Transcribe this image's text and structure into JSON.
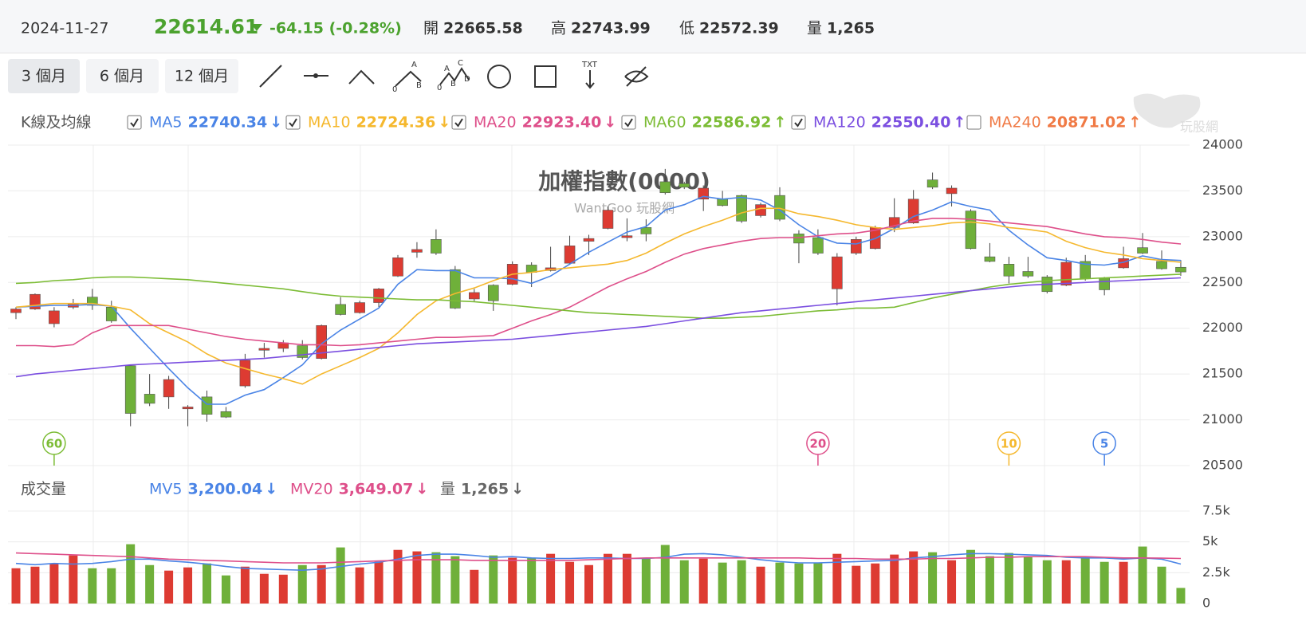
{
  "header": {
    "date": "2024-11-27",
    "price": "22614.61",
    "change": "-64.15 (-0.28%)",
    "stats": [
      {
        "label": "開",
        "value": "22665.58"
      },
      {
        "label": "高",
        "value": "22743.99"
      },
      {
        "label": "低",
        "value": "22572.39"
      },
      {
        "label": "量",
        "value": "1,265"
      }
    ]
  },
  "toolbar": {
    "ranges": [
      "3 個月",
      "6 個月",
      "12 個月"
    ],
    "tool_labels": {
      "abc": [
        "A",
        "B",
        "0"
      ],
      "abcd": [
        "A",
        "C",
        "B",
        "D",
        "0"
      ],
      "text": "TXT"
    }
  },
  "logo": "玩股網",
  "chart_data": [
    {
      "type": "candlestick",
      "title": "加權指數(0000)",
      "subtitle": "WantGoo 玩股網",
      "legend_title": "K線及均線",
      "up_color": "#dd3b32",
      "down_color": "#6fb03a",
      "grid": true,
      "open": [
        22170,
        22210,
        22050,
        22230,
        22340,
        22230,
        21590,
        21280,
        21250,
        21120,
        21250,
        21090,
        21370,
        21760,
        21780,
        21810,
        21670,
        22260,
        22170,
        22280,
        22570,
        22830,
        22970,
        22640,
        22320,
        22470,
        22480,
        22690,
        22630,
        22710,
        22950,
        23090,
        22990,
        23100,
        23600,
        23580,
        23410,
        23410,
        23450,
        23230,
        23450,
        23030,
        22990,
        22430,
        22820,
        22870,
        23100,
        23150,
        23620,
        23470,
        23280,
        22780,
        22700,
        22620,
        22560,
        22470,
        22730,
        22550,
        22660,
        22880,
        22730,
        22665.58
      ],
      "high": [
        22230,
        22380,
        22230,
        22320,
        22430,
        22300,
        21600,
        21500,
        21480,
        21160,
        21320,
        21140,
        21720,
        21840,
        21870,
        21870,
        22040,
        22340,
        22300,
        22440,
        22800,
        22940,
        23080,
        22680,
        22430,
        22480,
        22730,
        22720,
        22890,
        23010,
        23020,
        23330,
        23200,
        23190,
        23740,
        23600,
        23560,
        23500,
        23460,
        23370,
        23540,
        23070,
        23080,
        22820,
        23000,
        23120,
        23420,
        23510,
        23700,
        23560,
        23300,
        22930,
        22780,
        22780,
        22580,
        22770,
        22800,
        22560,
        22890,
        23040,
        22850,
        22743.99
      ],
      "low": [
        22100,
        22200,
        22010,
        22210,
        22200,
        22060,
        20930,
        21150,
        21120,
        20930,
        20980,
        21020,
        21350,
        21680,
        21740,
        21660,
        21660,
        22140,
        22160,
        22230,
        22560,
        22770,
        22800,
        22210,
        22290,
        22190,
        22470,
        22450,
        22620,
        22700,
        22800,
        23080,
        22950,
        22950,
        23460,
        23520,
        23280,
        23330,
        23150,
        23210,
        23170,
        22710,
        22800,
        22250,
        22800,
        22860,
        23050,
        23140,
        23520,
        23330,
        22860,
        22720,
        22490,
        22550,
        22380,
        22460,
        22520,
        22360,
        22650,
        22810,
        22640,
        22572.39
      ],
      "close": [
        22210,
        22370,
        22190,
        22270,
        22250,
        22080,
        21070,
        21180,
        21440,
        21140,
        21060,
        21030,
        21650,
        21780,
        21840,
        21680,
        22030,
        22150,
        22280,
        22430,
        22770,
        22860,
        22820,
        22220,
        22390,
        22300,
        22700,
        22610,
        22660,
        22900,
        22980,
        23290,
        23010,
        23030,
        23480,
        23540,
        23530,
        23340,
        23170,
        23350,
        23190,
        22930,
        22820,
        22780,
        22970,
        23100,
        23210,
        23410,
        23540,
        23530,
        22870,
        22730,
        22570,
        22570,
        22400,
        22720,
        22540,
        22420,
        22760,
        22820,
        22650,
        22614.61
      ],
      "ylim": [
        20500,
        24000
      ],
      "yticks": [
        20500,
        21000,
        21500,
        22000,
        22500,
        23000,
        23500,
        24000
      ],
      "series": [
        {
          "name": "MA5",
          "color": "#4a84e6",
          "latest": "22740.34",
          "trend": "↓",
          "checked": true,
          "values": [
            22230,
            22240,
            22250,
            22250,
            22260,
            22240,
            22000,
            21780,
            21560,
            21350,
            21170,
            21170,
            21270,
            21330,
            21460,
            21600,
            21830,
            21980,
            22100,
            22220,
            22480,
            22640,
            22630,
            22630,
            22550,
            22550,
            22540,
            22490,
            22570,
            22700,
            22830,
            22940,
            23050,
            23110,
            23290,
            23350,
            23440,
            23410,
            23430,
            23400,
            23290,
            23130,
            23000,
            22930,
            22920,
            22980,
            23090,
            23220,
            23290,
            23380,
            23330,
            23290,
            23070,
            22910,
            22770,
            22740,
            22700,
            22690,
            22720,
            22790,
            22750,
            22740
          ]
        },
        {
          "name": "MA10",
          "color": "#f5b82e",
          "latest": "22724.36",
          "trend": "↓",
          "checked": true,
          "values": [
            22230,
            22250,
            22270,
            22270,
            22270,
            22240,
            22200,
            22050,
            21950,
            21850,
            21720,
            21620,
            21560,
            21500,
            21450,
            21390,
            21500,
            21590,
            21680,
            21780,
            21950,
            22150,
            22300,
            22380,
            22440,
            22520,
            22590,
            22610,
            22640,
            22660,
            22680,
            22700,
            22740,
            22820,
            22930,
            23030,
            23110,
            23180,
            23260,
            23310,
            23310,
            23250,
            23220,
            23180,
            23130,
            23100,
            23080,
            23100,
            23120,
            23150,
            23160,
            23140,
            23100,
            23080,
            23050,
            22950,
            22880,
            22830,
            22800,
            22760,
            22740,
            22720
          ]
        },
        {
          "name": "MA20",
          "color": "#de4f8a",
          "latest": "22923.40",
          "trend": "↓",
          "checked": true,
          "values": [
            21810,
            21810,
            21800,
            21820,
            21950,
            22030,
            22030,
            22030,
            22030,
            21990,
            21950,
            21910,
            21880,
            21860,
            21840,
            21820,
            21820,
            21810,
            21820,
            21840,
            21860,
            21880,
            21900,
            21900,
            21910,
            21920,
            22000,
            22080,
            22150,
            22230,
            22340,
            22450,
            22540,
            22620,
            22720,
            22810,
            22870,
            22910,
            22950,
            22980,
            22990,
            22990,
            23010,
            23030,
            23040,
            23070,
            23120,
            23170,
            23200,
            23200,
            23190,
            23170,
            23150,
            23130,
            23110,
            23070,
            23030,
            23000,
            22990,
            22970,
            22940,
            22920
          ]
        },
        {
          "name": "MA60",
          "color": "#7cbc35",
          "latest": "22586.92",
          "trend": "↑",
          "checked": true,
          "values": [
            22490,
            22500,
            22520,
            22530,
            22550,
            22560,
            22560,
            22550,
            22540,
            22530,
            22510,
            22490,
            22470,
            22450,
            22430,
            22400,
            22370,
            22350,
            22340,
            22330,
            22320,
            22310,
            22310,
            22300,
            22290,
            22270,
            22250,
            22230,
            22210,
            22190,
            22170,
            22160,
            22150,
            22140,
            22130,
            22120,
            22110,
            22110,
            22120,
            22130,
            22150,
            22170,
            22190,
            22200,
            22220,
            22220,
            22230,
            22280,
            22330,
            22370,
            22410,
            22450,
            22480,
            22500,
            22520,
            22530,
            22540,
            22550,
            22560,
            22570,
            22580,
            22590
          ]
        },
        {
          "name": "MA120",
          "color": "#7b4fe0",
          "latest": "22550.40",
          "trend": "↑",
          "checked": true,
          "values": [
            21470,
            21500,
            21520,
            21540,
            21560,
            21580,
            21600,
            21610,
            21620,
            21630,
            21640,
            21650,
            21660,
            21670,
            21690,
            21710,
            21730,
            21750,
            21770,
            21790,
            21810,
            21830,
            21840,
            21850,
            21860,
            21870,
            21880,
            21900,
            21920,
            21940,
            21960,
            21980,
            22000,
            22020,
            22050,
            22080,
            22110,
            22140,
            22170,
            22190,
            22210,
            22230,
            22250,
            22270,
            22290,
            22310,
            22330,
            22350,
            22370,
            22390,
            22410,
            22430,
            22450,
            22470,
            22480,
            22490,
            22500,
            22510,
            22520,
            22530,
            22540,
            22550
          ]
        },
        {
          "name": "MA240",
          "color": "#f07a45",
          "latest": "20871.02",
          "trend": "↑",
          "checked": false
        }
      ],
      "markers": [
        {
          "period": 60,
          "color": "#7cbc35"
        },
        {
          "period": 20,
          "color": "#de4f8a"
        },
        {
          "period": 10,
          "color": "#f5b82e"
        },
        {
          "period": 5,
          "color": "#4a84e6"
        }
      ]
    },
    {
      "type": "bar",
      "title": "成交量",
      "grid": true,
      "values": [
        2860,
        2990,
        3250,
        3900,
        2860,
        2860,
        4810,
        3120,
        2670,
        2930,
        3250,
        2280,
        2990,
        2410,
        2340,
        3120,
        3120,
        4550,
        2930,
        3380,
        4350,
        4230,
        4160,
        3840,
        2730,
        3900,
        3710,
        3710,
        4030,
        3380,
        3120,
        4030,
        4030,
        3710,
        4750,
        3510,
        3640,
        3320,
        3510,
        2990,
        3320,
        3250,
        3320,
        4030,
        3060,
        3250,
        3970,
        4230,
        4160,
        3510,
        4350,
        3840,
        4100,
        3840,
        3510,
        3510,
        3710,
        3380,
        3380,
        4620,
        2990,
        1265
      ],
      "ylim": [
        0,
        7500
      ],
      "yticks": [
        0,
        {
          "value": 2500,
          "label": "2.5k"
        },
        {
          "value": 5000,
          "label": "5k"
        },
        {
          "value": 7500,
          "label": "7.5k"
        }
      ],
      "series": [
        {
          "name": "MV5",
          "color": "#4a84e6",
          "latest": "3,200.04",
          "trend": "↓",
          "values": [
            3250,
            3150,
            3250,
            3200,
            3250,
            3400,
            3600,
            3600,
            3450,
            3350,
            3200,
            3000,
            2850,
            2800,
            2750,
            2700,
            2800,
            3000,
            3200,
            3350,
            3600,
            3900,
            4000,
            4000,
            3900,
            3750,
            3800,
            3700,
            3650,
            3650,
            3700,
            3700,
            3650,
            3650,
            3750,
            4000,
            4050,
            3950,
            3750,
            3550,
            3400,
            3300,
            3300,
            3350,
            3400,
            3450,
            3500,
            3700,
            3800,
            3950,
            4050,
            4050,
            4000,
            3950,
            3900,
            3750,
            3700,
            3700,
            3600,
            3700,
            3600,
            3200
          ]
        },
        {
          "name": "MV20",
          "color": "#de4f8a",
          "latest": "3,649.07",
          "trend": "↓",
          "values": [
            4100,
            4050,
            4000,
            3950,
            3900,
            3850,
            3800,
            3700,
            3600,
            3550,
            3500,
            3450,
            3400,
            3350,
            3300,
            3300,
            3300,
            3350,
            3400,
            3450,
            3500,
            3550,
            3550,
            3550,
            3500,
            3500,
            3500,
            3500,
            3500,
            3500,
            3550,
            3600,
            3650,
            3700,
            3700,
            3700,
            3700,
            3700,
            3700,
            3700,
            3700,
            3700,
            3650,
            3650,
            3650,
            3600,
            3600,
            3600,
            3650,
            3650,
            3700,
            3750,
            3750,
            3800,
            3800,
            3800,
            3800,
            3750,
            3700,
            3700,
            3680,
            3650
          ]
        }
      ],
      "current": {
        "name": "量",
        "latest": "1,265",
        "trend": "↓",
        "color": "#666666"
      }
    }
  ]
}
